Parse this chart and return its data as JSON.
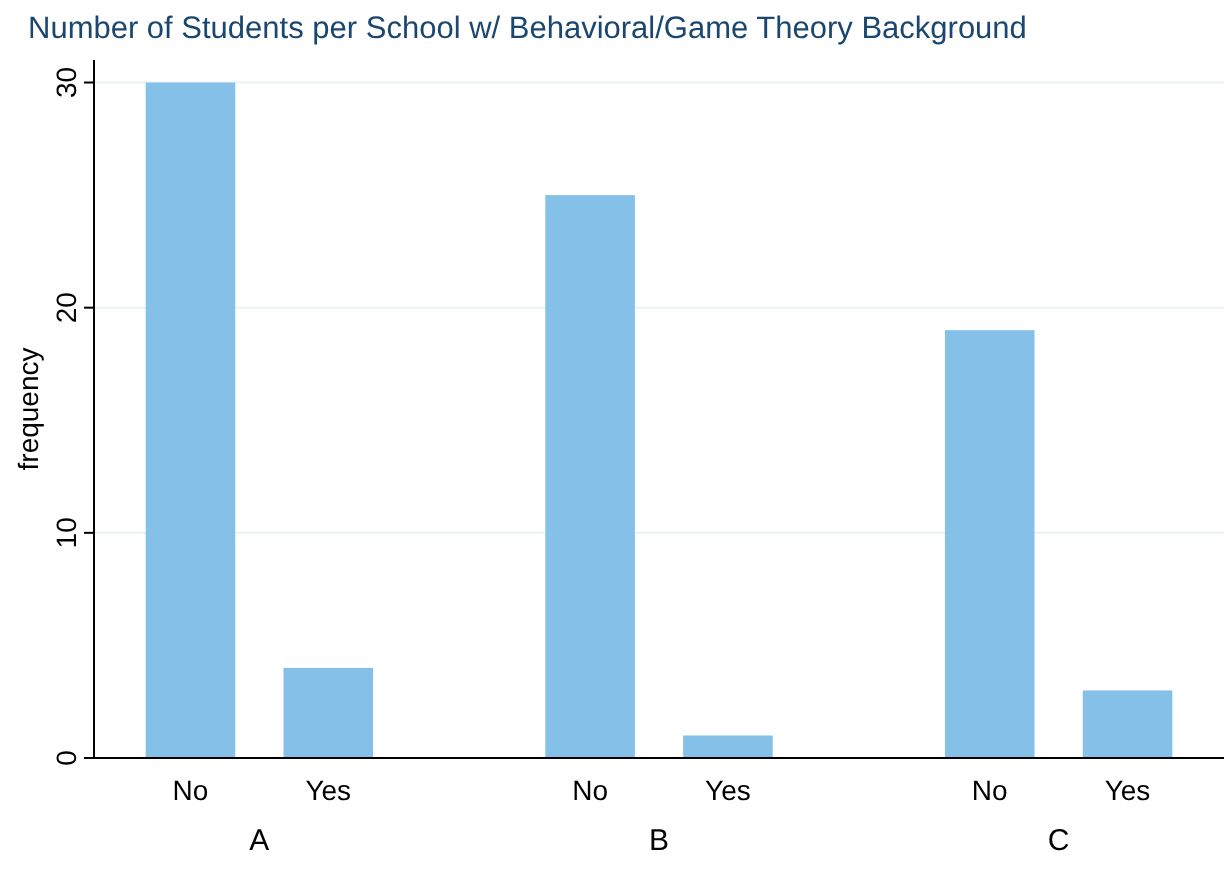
{
  "chart_data": {
    "type": "bar",
    "title": "Number of Students per School w/ Behavioral/Game Theory Background",
    "ylabel": "frequency",
    "categories": [
      "No",
      "Yes",
      "No",
      "Yes",
      "No",
      "Yes"
    ],
    "values": [
      30,
      4,
      25,
      1,
      19,
      3
    ],
    "color": "#85c0e9",
    "annotations": [
      "A",
      "B",
      "C"
    ],
    "ylim": [
      0,
      31
    ],
    "yticks": [
      0,
      10,
      20,
      30
    ],
    "grid": "y"
  }
}
